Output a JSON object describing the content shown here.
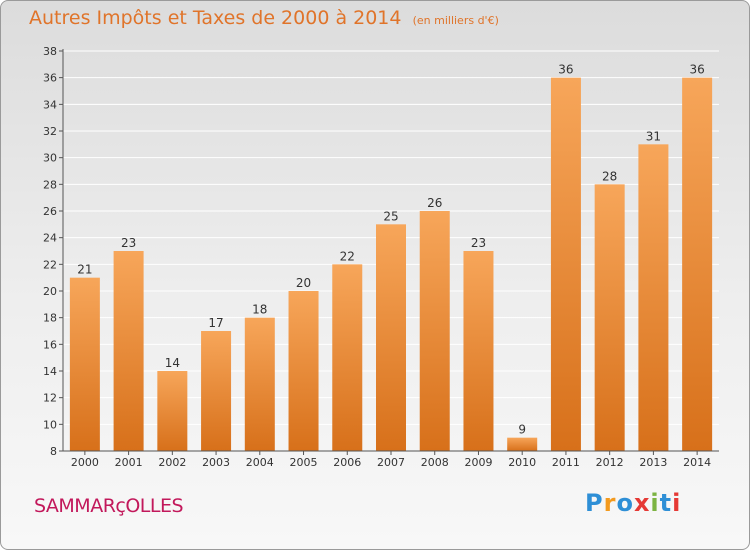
{
  "title": "Autres Impôts et Taxes de 2000 à 2014",
  "subtitle": "(en milliers d'€)",
  "commune": "SAMMARçOLLES",
  "logo": {
    "letters": [
      "P",
      "r",
      "o",
      "x",
      "i",
      "t",
      "i"
    ],
    "colors": [
      "#2e8fd6",
      "#f39a1e",
      "#2e8fd6",
      "#e53935",
      "#7cb342",
      "#2e8fd6",
      "#e53935"
    ]
  },
  "colors": {
    "bar_top": "#f7a65a",
    "bar_bottom": "#d7701a",
    "grid": "#ffffff",
    "axis": "#555555"
  },
  "chart_data": {
    "type": "bar",
    "categories": [
      "2000",
      "2001",
      "2002",
      "2003",
      "2004",
      "2005",
      "2006",
      "2007",
      "2008",
      "2009",
      "2010",
      "2011",
      "2012",
      "2013",
      "2014"
    ],
    "values": [
      21,
      23,
      14,
      17,
      18,
      20,
      22,
      25,
      26,
      23,
      9,
      36,
      28,
      31,
      36
    ],
    "ylim": [
      8,
      38
    ],
    "yticks": [
      8,
      10,
      12,
      14,
      16,
      18,
      20,
      22,
      24,
      26,
      28,
      30,
      32,
      34,
      36,
      38
    ],
    "grid": true,
    "title": "Autres Impôts et Taxes de 2000 à 2014",
    "subtitle": "(en milliers d'€)",
    "xlabel": "",
    "ylabel": ""
  }
}
